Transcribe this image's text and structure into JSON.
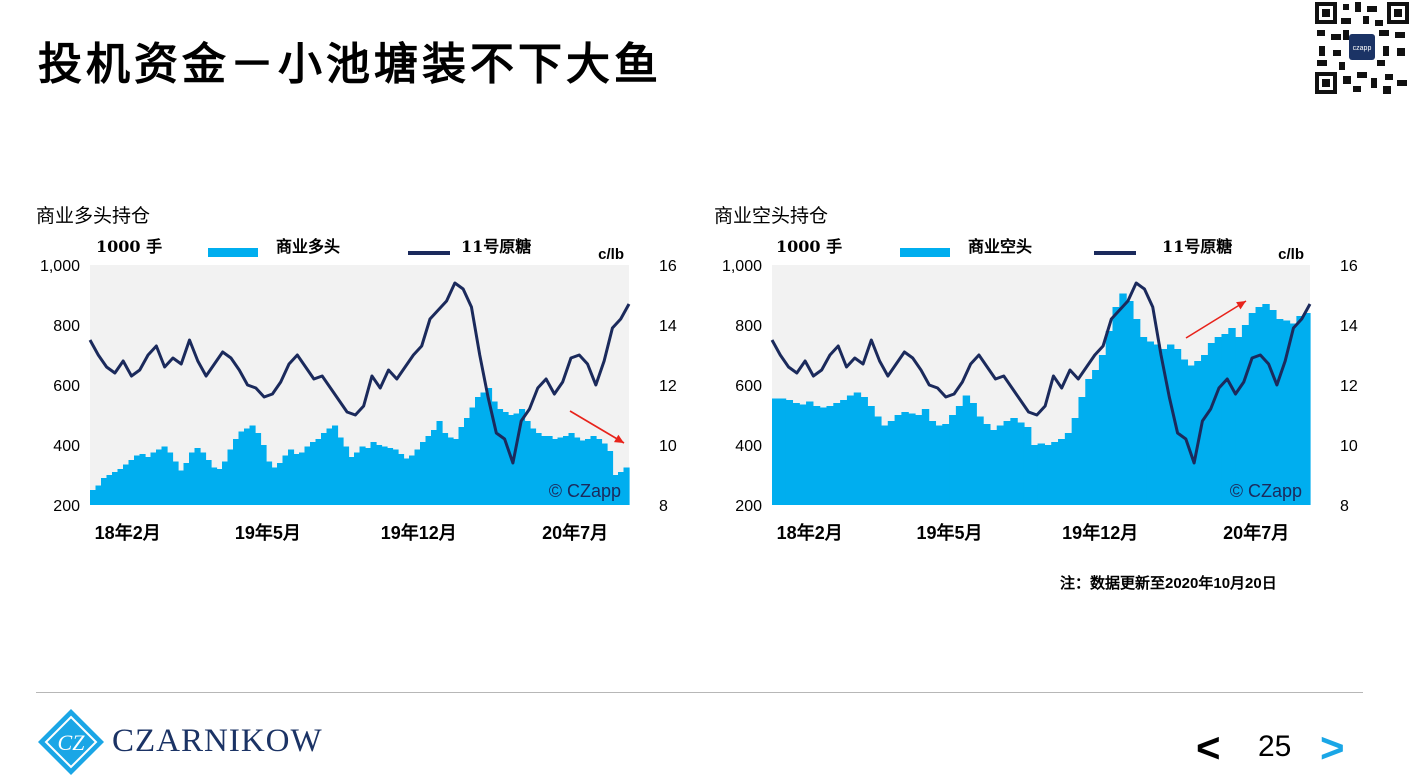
{
  "page": {
    "title": "投机资金－小池塘装不下大鱼",
    "note": "注：数据更新至2020年10月20日",
    "brand": "CZARNIKOW",
    "logo_mark": "CZ",
    "qr_label": "czapp",
    "page_number": "25",
    "nav_prev": "<",
    "nav_next": ">",
    "colors": {
      "bar": "#00aeef",
      "line": "#1b2a5c",
      "plot_bg": "#f2f2f2",
      "arrow": "#e8231b",
      "brand": "#1b3365"
    }
  },
  "chart_data": [
    {
      "type": "bar+line",
      "title": "商业多头持仓",
      "left_unit": "1000 手",
      "right_unit": "c/lb",
      "watermark": "© CZapp",
      "ylim_left": [
        200,
        1000
      ],
      "yticks_left": [
        "1,000",
        "800",
        "600",
        "400",
        "200"
      ],
      "ylim_right": [
        8,
        16
      ],
      "yticks_right": [
        "16",
        "14",
        "12",
        "10",
        "8"
      ],
      "xtick_labels": [
        "18年2月",
        "19年5月",
        "19年12月",
        "20年7月"
      ],
      "legend": [
        {
          "name": "商业多头",
          "kind": "bar"
        },
        {
          "name": "11号原糖",
          "kind": "line"
        }
      ],
      "annotation": "arrow-down",
      "series": [
        {
          "name": "商业多头",
          "kind": "bar",
          "values": [
            250,
            265,
            290,
            300,
            310,
            320,
            335,
            350,
            365,
            370,
            360,
            375,
            385,
            395,
            375,
            345,
            315,
            340,
            375,
            390,
            375,
            350,
            325,
            320,
            345,
            385,
            420,
            445,
            455,
            465,
            440,
            400,
            345,
            325,
            340,
            365,
            385,
            370,
            375,
            395,
            410,
            420,
            440,
            455,
            465,
            425,
            395,
            360,
            375,
            395,
            390,
            410,
            400,
            395,
            390,
            385,
            370,
            355,
            365,
            385,
            410,
            430,
            450,
            480,
            440,
            425,
            420,
            460,
            490,
            525,
            560,
            575,
            590,
            545,
            520,
            510,
            500,
            505,
            520,
            480,
            455,
            440,
            430,
            430,
            420,
            425,
            430,
            440,
            425,
            415,
            420,
            430,
            420,
            405,
            380,
            300,
            310,
            325
          ]
        },
        {
          "name": "11号原糖",
          "kind": "line",
          "values": [
            13.5,
            13.0,
            12.6,
            12.4,
            12.8,
            12.3,
            12.5,
            13.0,
            13.3,
            12.6,
            12.9,
            12.7,
            13.5,
            12.8,
            12.3,
            12.7,
            13.1,
            12.9,
            12.5,
            12.0,
            11.9,
            11.6,
            11.7,
            12.1,
            12.7,
            13.0,
            12.6,
            12.2,
            12.3,
            11.9,
            11.5,
            11.1,
            11.0,
            11.3,
            12.3,
            11.9,
            12.5,
            12.2,
            12.6,
            13.0,
            13.3,
            14.2,
            14.5,
            14.8,
            15.4,
            15.2,
            14.6,
            13.0,
            11.6,
            10.4,
            10.2,
            9.4,
            10.8,
            11.2,
            11.9,
            12.2,
            11.7,
            12.1,
            12.9,
            13.0,
            12.7,
            12.0,
            12.8,
            13.9,
            14.2,
            14.7
          ]
        }
      ]
    },
    {
      "type": "bar+line",
      "title": "商业空头持仓",
      "left_unit": "1000 手",
      "right_unit": "c/lb",
      "watermark": "© CZapp",
      "ylim_left": [
        200,
        1000
      ],
      "yticks_left": [
        "1,000",
        "800",
        "600",
        "400",
        "200"
      ],
      "ylim_right": [
        8,
        16
      ],
      "yticks_right": [
        "16",
        "14",
        "12",
        "10",
        "8"
      ],
      "xtick_labels": [
        "18年2月",
        "19年5月",
        "19年12月",
        "20年7月"
      ],
      "legend": [
        {
          "name": "商业空头",
          "kind": "bar"
        },
        {
          "name": "11号原糖",
          "kind": "line"
        }
      ],
      "annotation": "arrow-up",
      "series": [
        {
          "name": "商业空头",
          "kind": "bar",
          "values": [
            555,
            555,
            550,
            540,
            535,
            545,
            530,
            525,
            530,
            540,
            550,
            565,
            575,
            560,
            530,
            495,
            465,
            480,
            500,
            510,
            505,
            500,
            520,
            480,
            465,
            470,
            500,
            530,
            565,
            540,
            495,
            470,
            450,
            465,
            480,
            490,
            475,
            460,
            400,
            405,
            400,
            410,
            420,
            440,
            490,
            560,
            620,
            650,
            700,
            780,
            860,
            905,
            880,
            820,
            760,
            745,
            735,
            720,
            735,
            720,
            685,
            665,
            680,
            700,
            740,
            760,
            770,
            790,
            760,
            800,
            840,
            860,
            870,
            850,
            820,
            815,
            805,
            830,
            840
          ]
        },
        {
          "name": "11号原糖",
          "kind": "line",
          "values": [
            13.5,
            13.0,
            12.6,
            12.4,
            12.8,
            12.3,
            12.5,
            13.0,
            13.3,
            12.6,
            12.9,
            12.7,
            13.5,
            12.8,
            12.3,
            12.7,
            13.1,
            12.9,
            12.5,
            12.0,
            11.9,
            11.6,
            11.7,
            12.1,
            12.7,
            13.0,
            12.6,
            12.2,
            12.3,
            11.9,
            11.5,
            11.1,
            11.0,
            11.3,
            12.3,
            11.9,
            12.5,
            12.2,
            12.6,
            13.0,
            13.3,
            14.2,
            14.5,
            14.8,
            15.4,
            15.2,
            14.6,
            13.0,
            11.6,
            10.4,
            10.2,
            9.4,
            10.8,
            11.2,
            11.9,
            12.2,
            11.7,
            12.1,
            12.9,
            13.0,
            12.7,
            12.0,
            12.8,
            13.9,
            14.2,
            14.7
          ]
        }
      ]
    }
  ]
}
